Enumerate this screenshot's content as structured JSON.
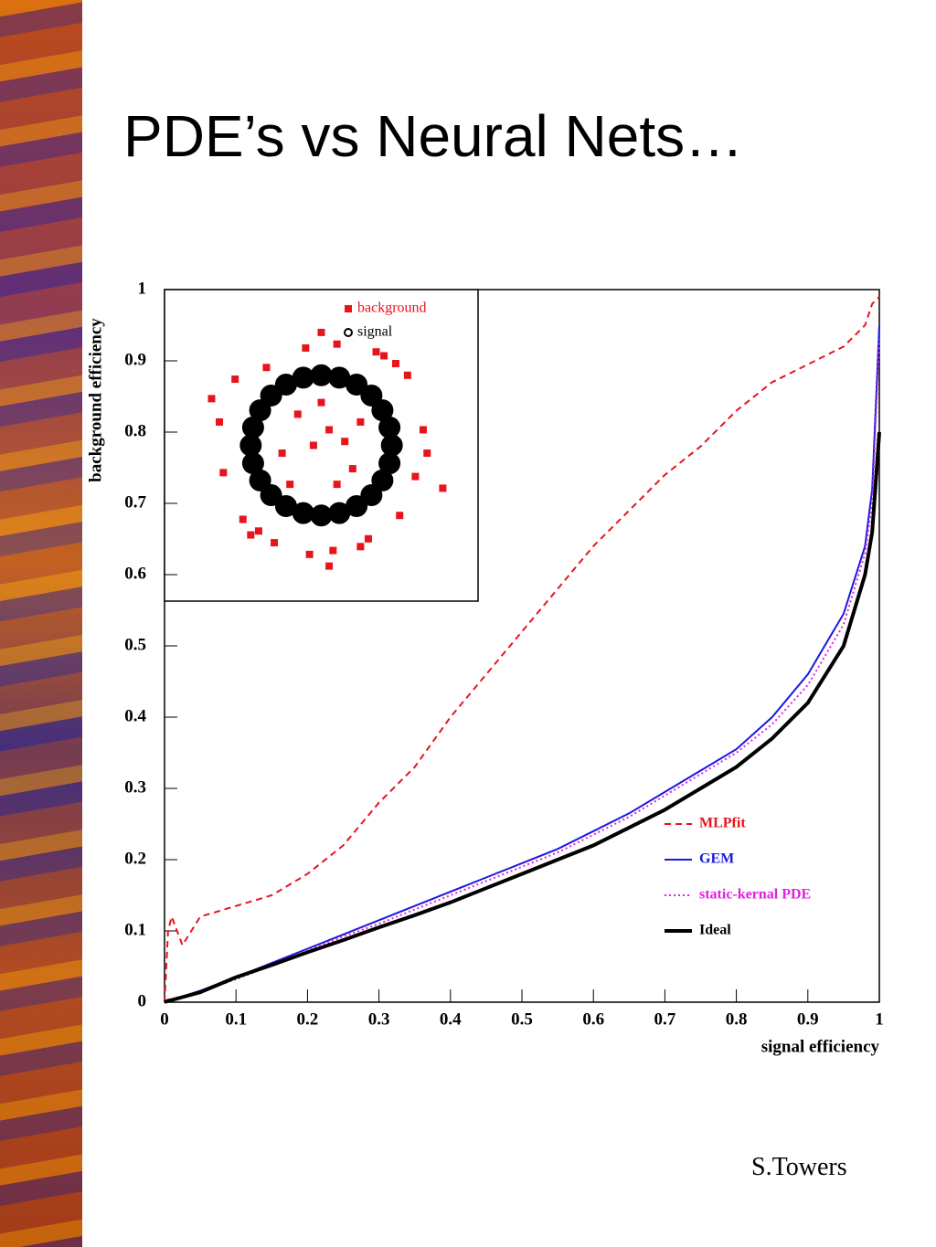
{
  "title": "PDE’s vs Neural Nets…",
  "footer": "S.Towers",
  "chart_data": [
    {
      "type": "line",
      "x_label": "signal efficiency",
      "y_label": "background efficiency",
      "xlim": [
        0,
        1
      ],
      "ylim": [
        0,
        1
      ],
      "xticks": [
        0,
        0.1,
        0.2,
        0.3,
        0.4,
        0.5,
        0.6,
        0.7,
        0.8,
        0.9,
        1
      ],
      "yticks": [
        0,
        0.1,
        0.2,
        0.3,
        0.4,
        0.5,
        0.6,
        0.7,
        0.8,
        0.9,
        1
      ],
      "x": [
        0,
        0.005,
        0.01,
        0.025,
        0.05,
        0.1,
        0.15,
        0.2,
        0.25,
        0.3,
        0.35,
        0.4,
        0.45,
        0.5,
        0.55,
        0.6,
        0.65,
        0.7,
        0.75,
        0.8,
        0.85,
        0.9,
        0.95,
        0.98,
        0.99,
        1
      ],
      "series": [
        {
          "name": "MLPfit",
          "color": "#e8141c",
          "dash": "dashed",
          "line_width": 2,
          "values": [
            0,
            0.1,
            0.12,
            0.08,
            0.12,
            0.135,
            0.15,
            0.18,
            0.22,
            0.28,
            0.33,
            0.4,
            0.46,
            0.52,
            0.58,
            0.64,
            0.69,
            0.74,
            0.78,
            0.83,
            0.87,
            0.895,
            0.92,
            0.95,
            0.98,
            0.99
          ]
        },
        {
          "name": "GEM",
          "color": "#1a1ae0",
          "dash": "solid",
          "line_width": 2,
          "values": [
            0,
            0.002,
            0.004,
            0.008,
            0.016,
            0.035,
            0.055,
            0.075,
            0.095,
            0.115,
            0.135,
            0.155,
            0.175,
            0.195,
            0.215,
            0.24,
            0.265,
            0.295,
            0.325,
            0.355,
            0.4,
            0.46,
            0.545,
            0.64,
            0.72,
            0.95
          ]
        },
        {
          "name": "static-kernal PDE",
          "color": "#e020e0",
          "dash": "dotted",
          "line_width": 2,
          "values": [
            0,
            0.002,
            0.004,
            0.008,
            0.015,
            0.032,
            0.052,
            0.072,
            0.092,
            0.11,
            0.13,
            0.15,
            0.17,
            0.19,
            0.21,
            0.235,
            0.26,
            0.29,
            0.32,
            0.35,
            0.39,
            0.445,
            0.53,
            0.63,
            0.7,
            0.93
          ]
        },
        {
          "name": "Ideal",
          "color": "#000000",
          "dash": "solid",
          "line_width": 4,
          "values": [
            0,
            0.002,
            0.003,
            0.007,
            0.014,
            0.035,
            0.052,
            0.07,
            0.087,
            0.105,
            0.122,
            0.14,
            0.16,
            0.18,
            0.2,
            0.22,
            0.245,
            0.27,
            0.3,
            0.33,
            0.37,
            0.42,
            0.5,
            0.6,
            0.66,
            0.8
          ]
        }
      ]
    },
    {
      "type": "scatter",
      "xlim": [
        -2,
        2
      ],
      "ylim": [
        -2,
        2
      ],
      "series": [
        {
          "name": "background",
          "color": "#e8141c",
          "marker": "square",
          "x": [
            0.1,
            -0.3,
            0.4,
            -0.5,
            0.2,
            -0.1,
            0.5,
            -0.4,
            0.0,
            0.3,
            1.3,
            1.2,
            -1.3,
            -1.25,
            0.2,
            -0.2,
            0.5,
            -0.6,
            1.1,
            -1.1,
            1.0,
            -1.0,
            0.8,
            -0.8,
            0.1,
            0.0,
            1.35,
            -1.4,
            0.7,
            -0.7,
            1.55,
            0.15,
            -0.9,
            0.95,
            -0.15,
            0.6
          ],
          "y": [
            0.2,
            0.4,
            -0.3,
            -0.1,
            -0.5,
            0.0,
            0.3,
            -0.5,
            0.55,
            0.05,
            0.2,
            -0.4,
            0.3,
            -0.35,
            1.3,
            1.25,
            -1.3,
            -1.25,
            0.9,
            0.85,
            -0.9,
            -0.95,
            1.15,
            -1.1,
            -1.55,
            1.45,
            -0.1,
            0.6,
            1.2,
            1.0,
            -0.55,
            -1.35,
            -1.15,
            1.05,
            -1.4,
            -1.2
          ]
        },
        {
          "name": "signal",
          "color": "#000000",
          "marker": "circle",
          "x": [
            0.9,
            0.87,
            0.78,
            0.64,
            0.45,
            0.23,
            0,
            -0.23,
            -0.45,
            -0.64,
            -0.78,
            -0.87,
            -0.9,
            -0.87,
            -0.78,
            -0.64,
            -0.45,
            -0.23,
            0,
            0.23,
            0.45,
            0.64,
            0.78,
            0.87
          ],
          "y": [
            0,
            0.23,
            0.45,
            0.64,
            0.78,
            0.87,
            0.9,
            0.87,
            0.78,
            0.64,
            0.45,
            0.23,
            0,
            -0.23,
            -0.45,
            -0.64,
            -0.78,
            -0.87,
            -0.9,
            -0.87,
            -0.78,
            -0.64,
            -0.45,
            -0.23
          ]
        }
      ]
    }
  ]
}
